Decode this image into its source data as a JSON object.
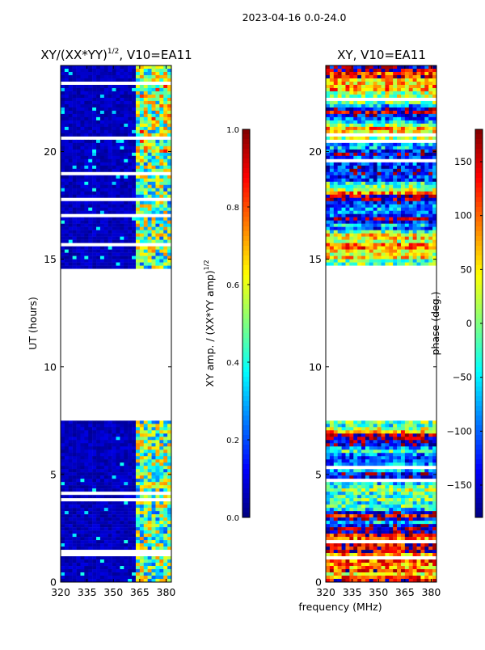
{
  "suptitle": "2023-04-16 0.0-24.0",
  "shared_xlabel": "frequency (MHz)",
  "colors": {
    "jet": [
      "#00007f",
      "#0000ff",
      "#007fff",
      "#00ffff",
      "#7fff7f",
      "#ffff00",
      "#ff7f00",
      "#ff0000",
      "#7f0000"
    ],
    "gap": "#ffffff",
    "axes": "#000000"
  },
  "chart_data": [
    {
      "type": "heatmap",
      "title_main": "XY/(XX*YY)",
      "title_sup": "1/2",
      "title_tail": ", V10=EA11",
      "ylabel": "UT (hours)",
      "x_ticks": [
        "320",
        "335",
        "350",
        "365",
        "380"
      ],
      "x_tick_values": [
        320,
        335,
        350,
        365,
        380
      ],
      "xlim": [
        320,
        383
      ],
      "y_ticks": [
        "0",
        "5",
        "10",
        "15",
        "20"
      ],
      "y_tick_values": [
        0,
        5,
        10,
        15,
        20
      ],
      "ylim": [
        0,
        24
      ],
      "data_gaps_hours": [
        [
          7.5,
          14.6
        ]
      ],
      "mode": "amp",
      "colorbar": {
        "label_main": "XY amp. / (XX*YY amp)",
        "label_sup": "1/2",
        "ticks": [
          "0.0",
          "0.2",
          "0.4",
          "0.6",
          "0.8",
          "1.0"
        ],
        "tick_values": [
          0,
          0.2,
          0.4,
          0.6,
          0.8,
          1.0
        ],
        "range": [
          0,
          1
        ]
      }
    },
    {
      "type": "heatmap",
      "title_main": "XY, V10=EA11",
      "title_sup": "",
      "title_tail": "",
      "ylabel": "",
      "x_ticks": [
        "320",
        "335",
        "350",
        "365",
        "380"
      ],
      "x_tick_values": [
        320,
        335,
        350,
        365,
        380
      ],
      "xlim": [
        320,
        383
      ],
      "y_ticks": [
        "0",
        "5",
        "10",
        "15",
        "20"
      ],
      "y_tick_values": [
        0,
        5,
        10,
        15,
        20
      ],
      "ylim": [
        0,
        24
      ],
      "data_gaps_hours": [
        [
          7.5,
          14.6
        ]
      ],
      "mode": "phase",
      "colorbar": {
        "label_main": "phase (deg.)",
        "label_sup": "",
        "ticks": [
          "−150",
          "−100",
          "−50",
          "0",
          "50",
          "100",
          "150"
        ],
        "tick_values": [
          -150,
          -100,
          -50,
          0,
          50,
          100,
          150
        ],
        "range": [
          -180,
          180
        ]
      }
    }
  ]
}
